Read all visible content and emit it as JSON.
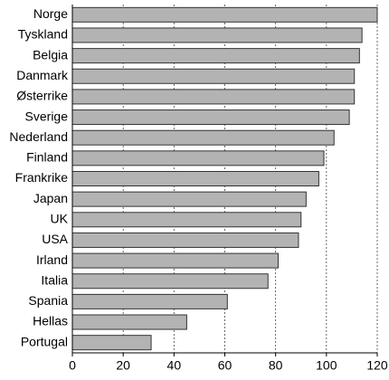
{
  "chart_data": {
    "type": "barh",
    "categories": [
      "Norge",
      "Tyskland",
      "Belgia",
      "Danmark",
      "Østerrike",
      "Sverige",
      "Nederland",
      "Finland",
      "Frankrike",
      "Japan",
      "UK",
      "USA",
      "Irland",
      "Italia",
      "Spania",
      "Hellas",
      "Portugal"
    ],
    "values": [
      120,
      114,
      113,
      111,
      111,
      109,
      103,
      99,
      97,
      92,
      90,
      89,
      81,
      77,
      61,
      45,
      31
    ],
    "color": "#b3b3b3",
    "xlim": [
      0,
      120
    ],
    "xticks": [
      0,
      20,
      40,
      60,
      80,
      100,
      120
    ],
    "grid": true
  }
}
